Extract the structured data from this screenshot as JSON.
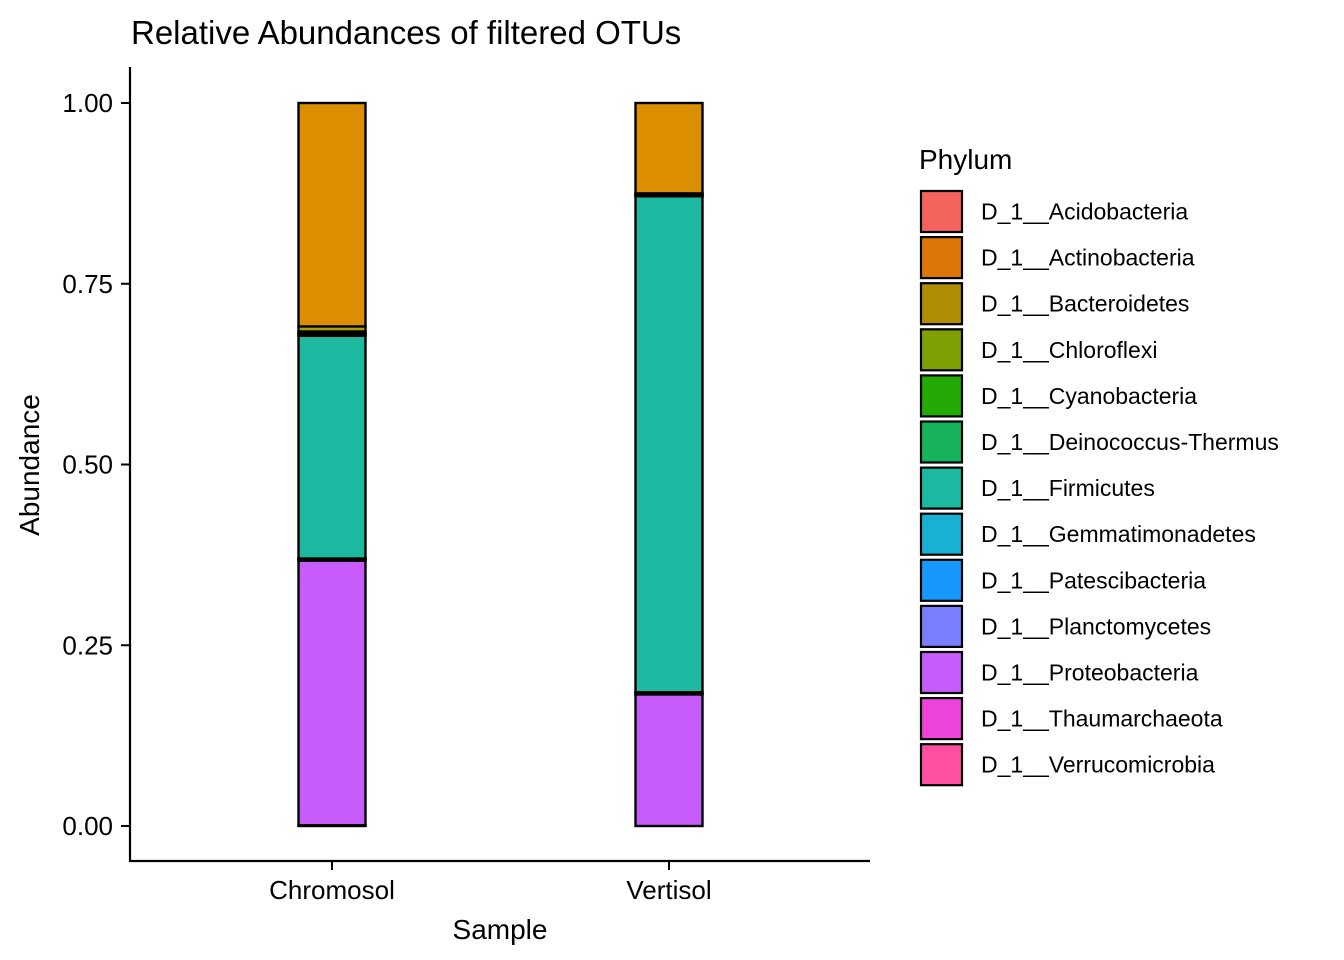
{
  "chart_data": {
    "type": "bar",
    "stacked": true,
    "title": "Relative Abundances of filtered OTUs",
    "xlabel": "Sample",
    "ylabel": "Abundance",
    "ylim": [
      0,
      1.05
    ],
    "yticks": [
      "0.00",
      "0.25",
      "0.50",
      "0.75",
      "1.00"
    ],
    "ytick_values": [
      0,
      0.25,
      0.5,
      0.75,
      1.0
    ],
    "categories": [
      "Chromosol",
      "Vertisol"
    ],
    "legend_title": "Phylum",
    "legend_position": "right",
    "grid": false,
    "series": [
      {
        "name": "D_1__Acidobacteria",
        "color": "#F8766D",
        "values": [
          0,
          0
        ]
      },
      {
        "name": "D_1__Actinobacteria",
        "color": "#DB8E00",
        "values": [
          0.309,
          0.125
        ]
      },
      {
        "name": "D_1__Bacteroidetes",
        "color": "#AEA200",
        "values": [
          0.007,
          0.001
        ]
      },
      {
        "name": "D_1__Chloroflexi",
        "color": "#64B200",
        "values": [
          0.002,
          0.001
        ]
      },
      {
        "name": "D_1__Cyanobacteria",
        "color": "#00BD5C",
        "values": [
          0.002,
          0.001
        ]
      },
      {
        "name": "D_1__Deinococcus-Thermus",
        "color": "#00C1A7",
        "values": [
          0.002,
          0.001
        ]
      },
      {
        "name": "D_1__Firmicutes",
        "color": "#1CB89F",
        "values": [
          0.308,
          0.686
        ]
      },
      {
        "name": "D_1__Gemmatimonadetes",
        "color": "#00BADE",
        "values": [
          0.001,
          0.001
        ]
      },
      {
        "name": "D_1__Patescibacteria",
        "color": "#00A6FF",
        "values": [
          0.001,
          0.001
        ]
      },
      {
        "name": "D_1__Planctomycetes",
        "color": "#B385FF",
        "values": [
          0.001,
          0.001
        ]
      },
      {
        "name": "D_1__Proteobacteria",
        "color": "#C75CFA",
        "values": [
          0.366,
          0.182
        ]
      },
      {
        "name": "D_1__Thaumarchaeota",
        "color": "#EF67EB",
        "values": [
          0,
          0
        ]
      },
      {
        "name": "D_1__Verrucomicrobia",
        "color": "#FF63B6",
        "values": [
          0.001,
          0
        ]
      }
    ],
    "legend_colors": [
      "#F5635F",
      "#DC7707",
      "#AE8D05",
      "#7EA003",
      "#24AA05",
      "#16B35A",
      "#1CB89F",
      "#1AB0D2",
      "#1798FF",
      "#7A7DFF",
      "#C75CFA",
      "#ED43D9",
      "#FF4FA1"
    ]
  }
}
